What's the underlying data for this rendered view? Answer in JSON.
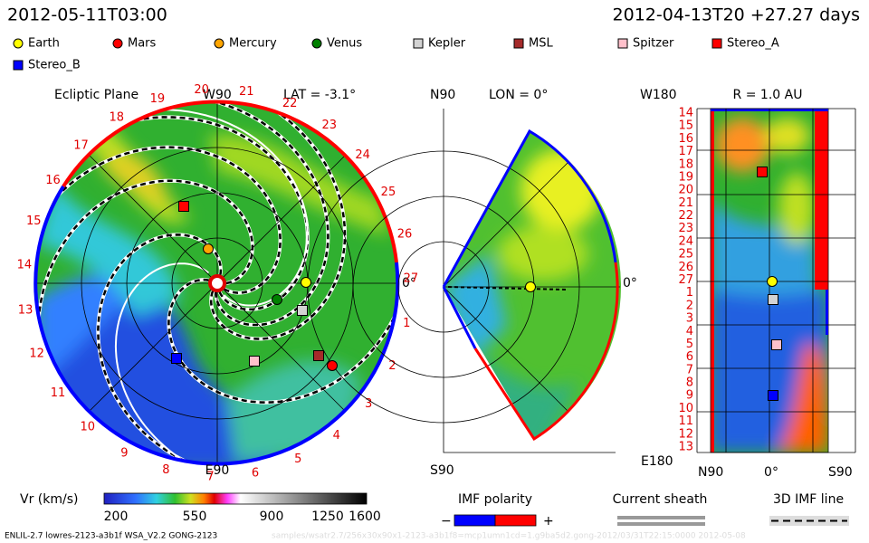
{
  "header": {
    "datetime": "2012-05-11T03:00",
    "reference": "2012-04-13T20 +27.27 days"
  },
  "legend": [
    {
      "label": "Earth",
      "color": "#ffff00",
      "shape": "circle"
    },
    {
      "label": "Mars",
      "color": "#ff0000",
      "shape": "circle"
    },
    {
      "label": "Mercury",
      "color": "#ffa500",
      "shape": "circle"
    },
    {
      "label": "Venus",
      "color": "#008000",
      "shape": "circle"
    },
    {
      "label": "Kepler",
      "color": "#d3d3d3",
      "shape": "square"
    },
    {
      "label": "MSL",
      "color": "#a52a2a",
      "shape": "square"
    },
    {
      "label": "Spitzer",
      "color": "#ffc0cb",
      "shape": "square"
    },
    {
      "label": "Stereo_A",
      "color": "#ff0000",
      "shape": "square"
    },
    {
      "label": "Stereo_B",
      "color": "#0000ff",
      "shape": "square"
    }
  ],
  "ecliptic_panel": {
    "title": "Ecliptic Plane",
    "top_label": "W90",
    "lat_label": "LAT = -3.1°",
    "right_label": "0°",
    "bottom_label": "E90",
    "carrington_labels": [
      "1",
      "2",
      "3",
      "4",
      "5",
      "6",
      "7",
      "8",
      "9",
      "10",
      "11",
      "12",
      "13",
      "14",
      "15",
      "16",
      "17",
      "18",
      "19",
      "20",
      "21",
      "22",
      "23",
      "24",
      "25",
      "26",
      "27"
    ]
  },
  "meridional_panel": {
    "top_label": "N90",
    "lon_label": "LON = 0°",
    "right_label": "0°",
    "bottom_label": "S90"
  },
  "radial_panel": {
    "top_left_label": "W180",
    "radius_label": "R = 1.0 AU",
    "bottom_left_label": "E180",
    "y_labels": [
      "14",
      "15",
      "16",
      "17",
      "18",
      "19",
      "20",
      "21",
      "22",
      "23",
      "24",
      "25",
      "26",
      "27",
      "1",
      "2",
      "3",
      "4",
      "5",
      "6",
      "7",
      "8",
      "9",
      "10",
      "11",
      "12",
      "13"
    ],
    "x_labels": [
      "N90",
      "0°",
      "S90"
    ]
  },
  "colorbar": {
    "title": "Vr (km/s)",
    "ticks": [
      "200",
      "550",
      "900",
      "1250",
      "1600"
    ]
  },
  "imf": {
    "title": "IMF polarity",
    "minus": "−",
    "plus": "+"
  },
  "current_sheath": "Current sheath",
  "imf_line": "3D IMF line",
  "footer": {
    "left": "ENLIL-2.7 lowres-2123-a3b1f WSA_V2.2 GONG-2123",
    "right": "samples/wsatr2.7/256x30x90x1-2123-a3b1f8=mcp1umn1cd=1.g9ba5d2.gong-2012/03/31T22:15:0000   2012-05-08"
  }
}
